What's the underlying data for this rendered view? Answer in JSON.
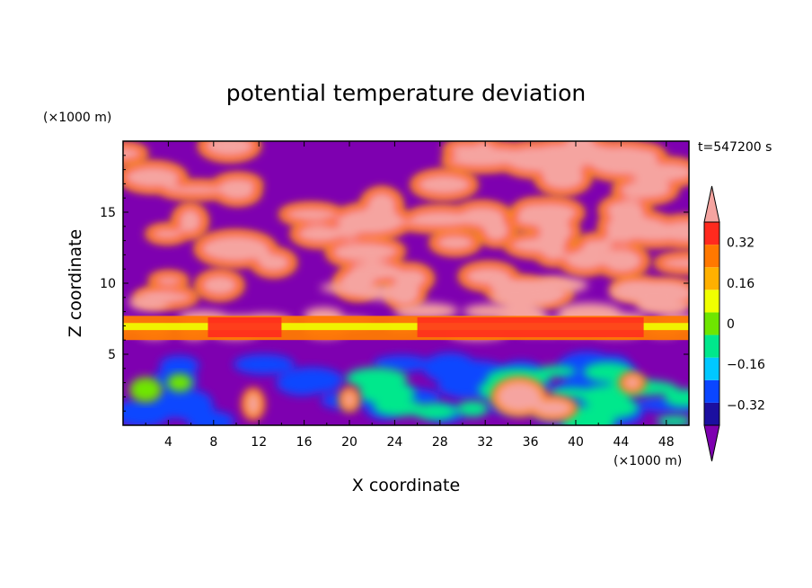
{
  "chart_data": {
    "type": "heatmap",
    "title": "potential temperature deviation",
    "xlabel": "X coordinate",
    "ylabel": "Z coordinate",
    "x_unit": "(×1000 m)",
    "y_unit": "(×1000 m)",
    "time_label": "t=547200 s",
    "xlim": [
      0,
      50
    ],
    "ylim": [
      0,
      20
    ],
    "x_ticks": [
      4,
      8,
      12,
      16,
      20,
      24,
      28,
      32,
      36,
      40,
      44,
      48
    ],
    "x_tick_labels": [
      "4",
      "8",
      "12",
      "16",
      "20",
      "24",
      "28",
      "32",
      "36",
      "40",
      "44",
      "48"
    ],
    "y_ticks": [
      5,
      10,
      15
    ],
    "y_tick_labels": [
      "5",
      "10",
      "15"
    ],
    "colorbar": {
      "levels": [
        -0.4,
        -0.32,
        -0.24,
        -0.16,
        -0.08,
        0,
        0.08,
        0.16,
        0.24,
        0.32,
        0.4
      ],
      "tick_values": [
        -0.32,
        -0.16,
        0,
        0.16,
        0.32
      ],
      "tick_labels": [
        "−0.32",
        "−0.16",
        "0",
        "0.16",
        "0.32"
      ],
      "colors": [
        "#7e00b0",
        "#1b0fa0",
        "#0a46ff",
        "#00c8ff",
        "#00e88c",
        "#6ee600",
        "#f0ff00",
        "#ffb000",
        "#ff7800",
        "#ff2a1e",
        "#f5a4a0"
      ],
      "extend": "both"
    }
  }
}
